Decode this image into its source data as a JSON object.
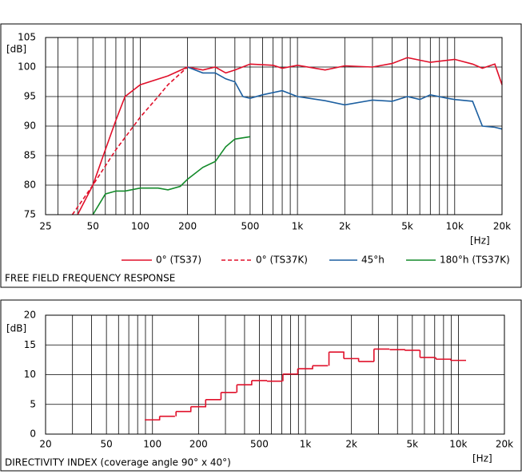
{
  "chart_data": [
    {
      "type": "line",
      "title": "FREE FIELD FREQUENCY RESPONSE",
      "y_label": "[dB]",
      "x_label": "[Hz]",
      "log_x": true,
      "grid": true,
      "legend": "bottom",
      "xlim": [
        25,
        20000
      ],
      "ylim": [
        75,
        105
      ],
      "xticks": [
        25,
        50,
        100,
        200,
        500,
        {
          "value": 1000,
          "label": "1k"
        },
        {
          "value": 2000,
          "label": "2k"
        },
        {
          "value": 5000,
          "label": "5k"
        },
        {
          "value": 10000,
          "label": "10k"
        },
        {
          "value": 20000,
          "label": "20k"
        }
      ],
      "xminor": [
        30,
        40,
        60,
        70,
        80,
        90,
        300,
        400,
        600,
        700,
        800,
        900,
        3000,
        4000,
        6000,
        7000,
        8000,
        9000
      ],
      "yticks": [
        75,
        80,
        85,
        90,
        95,
        100,
        105
      ],
      "series": [
        {
          "name": "0° (TS37)",
          "color": "#e0102a",
          "x": [
            40,
            50,
            60,
            70,
            80,
            100,
            150,
            200,
            250,
            300,
            350,
            400,
            500,
            700,
            800,
            1000,
            1500,
            2000,
            3000,
            4000,
            5000,
            7000,
            10000,
            13000,
            15000,
            18000,
            20000
          ],
          "values": [
            75,
            80,
            86,
            91,
            95,
            97,
            98.5,
            100,
            99.5,
            100,
            99,
            99.5,
            100.5,
            100.3,
            99.8,
            100.3,
            99.5,
            100.2,
            100,
            100.6,
            101.6,
            100.8,
            101.3,
            100.5,
            99.8,
            100.5,
            97
          ]
        },
        {
          "name": "0° (TS37K)",
          "color": "#e0102a",
          "dashed": true,
          "x": [
            37,
            50,
            70,
            100,
            130,
            150,
            200
          ],
          "values": [
            75,
            80,
            86,
            91.5,
            95,
            97,
            100
          ]
        },
        {
          "name": "45°h",
          "color": "#1c5fa0",
          "x": [
            200,
            250,
            300,
            350,
            400,
            450,
            500,
            600,
            800,
            1000,
            1500,
            2000,
            3000,
            4000,
            5000,
            6000,
            7000,
            9000,
            10000,
            13000,
            15000,
            18000,
            20000
          ],
          "values": [
            100,
            99,
            99,
            98,
            97.5,
            95,
            94.7,
            95.3,
            96,
            95,
            94.3,
            93.6,
            94.4,
            94.2,
            95,
            94.5,
            95.3,
            94.7,
            94.5,
            94.2,
            90,
            89.8,
            89.5
          ]
        },
        {
          "name": "180°h (TS37K)",
          "color": "#138a2a",
          "x": [
            50,
            60,
            70,
            80,
            100,
            130,
            150,
            180,
            200,
            250,
            300,
            350,
            400,
            500
          ],
          "values": [
            75,
            78.5,
            79,
            79,
            79.5,
            79.5,
            79.2,
            79.8,
            81,
            83,
            84,
            86.5,
            87.8,
            88.2
          ]
        }
      ]
    },
    {
      "type": "step",
      "title": "DIRECTIVITY INDEX (coverage angle 90° x 40°)",
      "y_label": "[dB]",
      "x_label": "[Hz]",
      "log_x": true,
      "grid": true,
      "xlim": [
        20,
        20000
      ],
      "ylim": [
        0,
        20
      ],
      "xticks": [
        20,
        50,
        100,
        200,
        500,
        {
          "value": 1000,
          "label": "1k"
        },
        {
          "value": 2000,
          "label": "2k"
        },
        {
          "value": 5000,
          "label": "5k"
        },
        {
          "value": 10000,
          "label": "10k"
        },
        {
          "value": 20000,
          "label": "20k"
        }
      ],
      "xminor": [
        30,
        40,
        60,
        70,
        80,
        90,
        300,
        400,
        600,
        700,
        800,
        900,
        3000,
        4000,
        6000,
        7000,
        8000,
        9000
      ],
      "yticks": [
        0,
        5,
        10,
        15,
        20
      ],
      "series": [
        {
          "color": "#e0102a",
          "x": [
            100,
            125,
            160,
            200,
            250,
            315,
            400,
            500,
            630,
            800,
            1000,
            1250,
            1600,
            2000,
            2500,
            3150,
            4000,
            5000,
            6300,
            8000,
            10000
          ],
          "values": [
            2.4,
            3,
            3.8,
            4.6,
            5.8,
            7,
            8.3,
            9,
            8.9,
            10.1,
            11,
            11.5,
            13.8,
            12.7,
            12.2,
            14.3,
            14.2,
            14.1,
            12.9,
            12.6,
            12.4
          ]
        }
      ]
    }
  ]
}
